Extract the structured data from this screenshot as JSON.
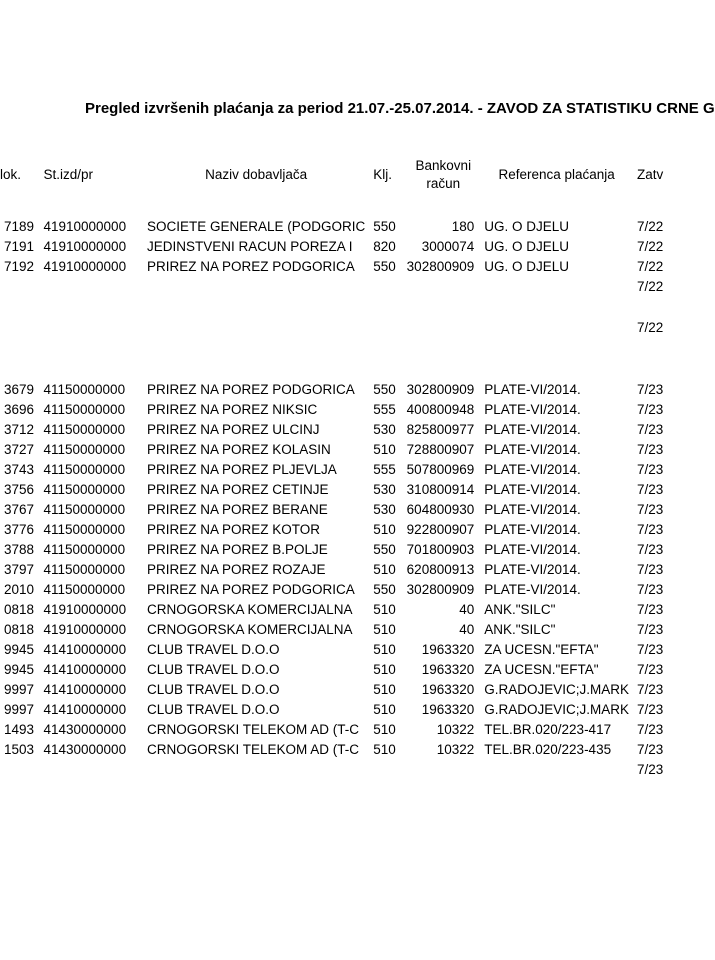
{
  "title": "Pregled izvršenih plaćanja za period 21.07.-25.07.2014.  - ZAVOD ZA STATISTIKU CRNE G",
  "columns": {
    "dok": "lok.",
    "stizd": "St.izd/pr",
    "naziv": "Naziv dobavljača",
    "klj": "Klj.",
    "bankovni": "Bankovni račun",
    "referenca": "Referenca plaćanja",
    "zatv": "Zatv"
  },
  "group1": [
    {
      "dok": "7189",
      "stizd": "41910000000",
      "naziv": "SOCIETE GENERALE (PODGORIC",
      "klj": "550",
      "bankovni": "180",
      "referenca": "UG. O DJELU",
      "zatv": "7/22"
    },
    {
      "dok": "7191",
      "stizd": "41910000000",
      "naziv": "JEDINSTVENI RACUN POREZA I",
      "klj": "820",
      "bankovni": "3000074",
      "referenca": "UG. O DJELU",
      "zatv": "7/22"
    },
    {
      "dok": "7192",
      "stizd": "41910000000",
      "naziv": "PRIREZ  NA POREZ PODGORICA",
      "klj": "550",
      "bankovni": "302800909",
      "referenca": "UG. O DJELU",
      "zatv": "7/22"
    }
  ],
  "group1_tail": [
    {
      "zatv": "7/22"
    }
  ],
  "group1_tail2": [
    {
      "zatv": "7/22"
    }
  ],
  "group2": [
    {
      "dok": "3679",
      "stizd": "41150000000",
      "naziv": "PRIREZ  NA POREZ PODGORICA",
      "klj": "550",
      "bankovni": "302800909",
      "referenca": "PLATE-VI/2014.",
      "zatv": "7/23"
    },
    {
      "dok": "3696",
      "stizd": "41150000000",
      "naziv": "PRIREZ  NA POREZ NIKSIC",
      "klj": "555",
      "bankovni": "400800948",
      "referenca": "PLATE-VI/2014.",
      "zatv": "7/23"
    },
    {
      "dok": "3712",
      "stizd": "41150000000",
      "naziv": "PRIREZ  NA POREZ ULCINJ",
      "klj": "530",
      "bankovni": "825800977",
      "referenca": "PLATE-VI/2014.",
      "zatv": "7/23"
    },
    {
      "dok": "3727",
      "stizd": "41150000000",
      "naziv": "PRIREZ  NA POREZ KOLASIN",
      "klj": "510",
      "bankovni": "728800907",
      "referenca": "PLATE-VI/2014.",
      "zatv": "7/23"
    },
    {
      "dok": "3743",
      "stizd": "41150000000",
      "naziv": "PRIREZ  NA POREZ PLJEVLJA",
      "klj": "555",
      "bankovni": "507800969",
      "referenca": "PLATE-VI/2014.",
      "zatv": "7/23"
    },
    {
      "dok": "3756",
      "stizd": "41150000000",
      "naziv": "PRIREZ  NA POREZ CETINJE",
      "klj": "530",
      "bankovni": "310800914",
      "referenca": "PLATE-VI/2014.",
      "zatv": "7/23"
    },
    {
      "dok": "3767",
      "stizd": "41150000000",
      "naziv": "PRIREZ  NA POREZ BERANE",
      "klj": "530",
      "bankovni": "604800930",
      "referenca": "PLATE-VI/2014.",
      "zatv": "7/23"
    },
    {
      "dok": "3776",
      "stizd": "41150000000",
      "naziv": "PRIREZ  NA POREZ KOTOR",
      "klj": "510",
      "bankovni": "922800907",
      "referenca": "PLATE-VI/2014.",
      "zatv": "7/23"
    },
    {
      "dok": "3788",
      "stizd": "41150000000",
      "naziv": "PRIREZ  NA POREZ B.POLJE",
      "klj": "550",
      "bankovni": "701800903",
      "referenca": "PLATE-VI/2014.",
      "zatv": "7/23"
    },
    {
      "dok": "3797",
      "stizd": "41150000000",
      "naziv": "PRIREZ  NA POREZ ROZAJE",
      "klj": "510",
      "bankovni": "620800913",
      "referenca": "PLATE-VI/2014.",
      "zatv": "7/23"
    },
    {
      "dok": "2010",
      "stizd": "41150000000",
      "naziv": "PRIREZ  NA POREZ PODGORICA",
      "klj": "550",
      "bankovni": "302800909",
      "referenca": "PLATE-VI/2014.",
      "zatv": "7/23"
    },
    {
      "dok": "0818",
      "stizd": "41910000000",
      "naziv": "CRNOGORSKA KOMERCIJALNA",
      "klj": "510",
      "bankovni": "40",
      "referenca": "ANK.\"SILC\"",
      "zatv": "7/23"
    },
    {
      "dok": "0818",
      "stizd": "41910000000",
      "naziv": "CRNOGORSKA KOMERCIJALNA",
      "klj": "510",
      "bankovni": "40",
      "referenca": "ANK.\"SILC\"",
      "zatv": "7/23"
    },
    {
      "dok": "9945",
      "stizd": "41410000000",
      "naziv": "CLUB TRAVEL  D.O.O",
      "klj": "510",
      "bankovni": "1963320",
      "referenca": "ZA UCESN.\"EFTA\"",
      "zatv": "7/23"
    },
    {
      "dok": "9945",
      "stizd": "41410000000",
      "naziv": "CLUB TRAVEL  D.O.O",
      "klj": "510",
      "bankovni": "1963320",
      "referenca": "ZA UCESN.\"EFTA\"",
      "zatv": "7/23"
    },
    {
      "dok": "9997",
      "stizd": "41410000000",
      "naziv": "CLUB TRAVEL  D.O.O",
      "klj": "510",
      "bankovni": "1963320",
      "referenca": "G.RADOJEVIC;J.MARK",
      "zatv": "7/23"
    },
    {
      "dok": "9997",
      "stizd": "41410000000",
      "naziv": "CLUB TRAVEL  D.O.O",
      "klj": "510",
      "bankovni": "1963320",
      "referenca": "G.RADOJEVIC;J.MARK",
      "zatv": "7/23"
    },
    {
      "dok": "1493",
      "stizd": "41430000000",
      "naziv": "CRNOGORSKI TELEKOM AD (T-C",
      "klj": "510",
      "bankovni": "10322",
      "referenca": "TEL.BR.020/223-417",
      "zatv": "7/23"
    },
    {
      "dok": "1503",
      "stizd": "41430000000",
      "naziv": "CRNOGORSKI TELEKOM AD (T-C",
      "klj": "510",
      "bankovni": "10322",
      "referenca": "TEL.BR.020/223-435",
      "zatv": "7/23"
    }
  ],
  "group2_tail": [
    {
      "zatv": "7/23"
    }
  ]
}
